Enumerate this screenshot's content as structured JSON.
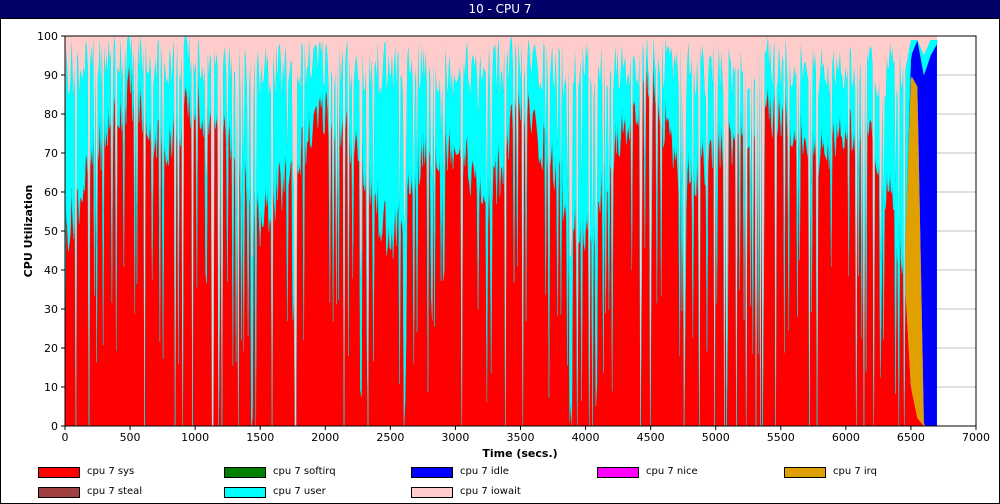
{
  "window": {
    "title": "10 - CPU 7"
  },
  "chart_data": {
    "type": "area",
    "stacked": true,
    "title": "10 - CPU 7",
    "xlabel": "Time (secs.)",
    "ylabel": "CPU Utilization",
    "xlim": [
      0,
      7000
    ],
    "ylim": [
      0,
      100
    ],
    "xticks": [
      0,
      500,
      1000,
      1500,
      2000,
      2500,
      3000,
      3500,
      4000,
      4500,
      5000,
      5500,
      6000,
      6500,
      7000
    ],
    "yticks": [
      0,
      10,
      20,
      30,
      40,
      50,
      60,
      70,
      80,
      90,
      100
    ],
    "grid": true,
    "legend_position": "bottom",
    "data_range_x": [
      0,
      6700
    ],
    "series": [
      {
        "name": "cpu 7 sys",
        "color": "#ff0000"
      },
      {
        "name": "cpu 7 softirq",
        "color": "#008000"
      },
      {
        "name": "cpu 7 idle",
        "color": "#0000ff"
      },
      {
        "name": "cpu 7 nice",
        "color": "#ff00ff"
      },
      {
        "name": "cpu 7 irq",
        "color": "#e0a000"
      },
      {
        "name": "cpu 7 steal",
        "color": "#a04040"
      },
      {
        "name": "cpu 7 user",
        "color": "#00ffff"
      },
      {
        "name": "cpu 7 iowait",
        "color": "#ffcccc"
      }
    ],
    "time_samples": [
      0,
      250,
      500,
      750,
      1000,
      1250,
      1500,
      1750,
      2000,
      2250,
      2500,
      2750,
      3000,
      3250,
      3500,
      3750,
      4000,
      4250,
      4500,
      4750,
      5000,
      5250,
      5500,
      5750,
      6000,
      6250,
      6450,
      6500,
      6550,
      6600,
      6650,
      6700
    ],
    "sys_values": [
      48,
      70,
      85,
      70,
      82,
      72,
      50,
      65,
      80,
      70,
      45,
      68,
      72,
      55,
      82,
      65,
      45,
      72,
      88,
      60,
      70,
      75,
      80,
      68,
      75,
      70,
      40,
      10,
      2,
      0,
      0,
      0
    ],
    "softirq_values": [
      0,
      0,
      0,
      0,
      0,
      0,
      0,
      0,
      0,
      0,
      0,
      0,
      0,
      0,
      0,
      0,
      0,
      0,
      0,
      0,
      0,
      0,
      0,
      0,
      0,
      0,
      0,
      0,
      0,
      0,
      0,
      0
    ],
    "idle_values": [
      0,
      0,
      0,
      0,
      0,
      0,
      0,
      0,
      0,
      0,
      0,
      0,
      0,
      0,
      0,
      0,
      0,
      0,
      0,
      0,
      0,
      0,
      0,
      0,
      0,
      0,
      0,
      5,
      12,
      90,
      95,
      98
    ],
    "irq_values": [
      0,
      0,
      0,
      0,
      0,
      0,
      0,
      0,
      0,
      0,
      0,
      0,
      0,
      0,
      0,
      0,
      0,
      0,
      0,
      0,
      0,
      0,
      0,
      0,
      0,
      0,
      0,
      80,
      85,
      0,
      0,
      0
    ],
    "user_values": [
      42,
      22,
      10,
      22,
      12,
      18,
      38,
      25,
      12,
      20,
      45,
      22,
      18,
      35,
      10,
      25,
      45,
      18,
      5,
      30,
      20,
      15,
      12,
      22,
      15,
      20,
      50,
      4,
      0,
      5,
      4,
      1
    ],
    "iowait_values": [
      10,
      8,
      5,
      8,
      6,
      10,
      12,
      10,
      8,
      10,
      10,
      10,
      10,
      10,
      8,
      10,
      10,
      10,
      7,
      10,
      10,
      10,
      8,
      10,
      10,
      10,
      10,
      1,
      1,
      5,
      1,
      1
    ]
  }
}
